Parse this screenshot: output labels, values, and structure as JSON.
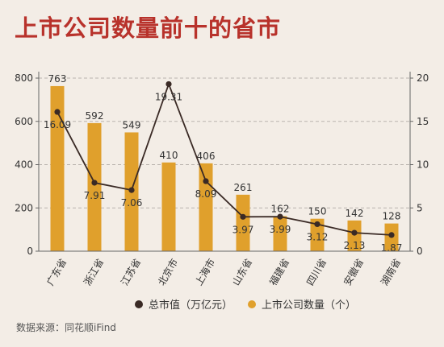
{
  "chart_data": {
    "type": "bar",
    "title": "上市公司数量前十的省市",
    "categories": [
      "广东省",
      "浙江省",
      "江苏省",
      "北京市",
      "上海市",
      "山东省",
      "福建省",
      "四川省",
      "安徽省",
      "湖南省"
    ],
    "series": [
      {
        "name": "上市公司数量（个）",
        "type": "bar",
        "axis": "left",
        "values": [
          763,
          592,
          549,
          410,
          406,
          261,
          162,
          150,
          142,
          128
        ],
        "labels": [
          "763",
          "592",
          "549",
          "410",
          "406",
          "261",
          "162",
          "150",
          "142",
          "128"
        ],
        "color": "#e0a02c"
      },
      {
        "name": "总市值（万亿元）",
        "type": "line",
        "axis": "right",
        "values": [
          16.09,
          7.91,
          7.06,
          19.31,
          8.09,
          3.97,
          3.99,
          3.12,
          2.13,
          1.87
        ],
        "labels": [
          "16.09",
          "7.91",
          "7.06",
          "19.31",
          "8.09",
          "3.97",
          "3.99",
          "3.12",
          "2.13",
          "1.87"
        ],
        "color": "#3a2a25"
      }
    ],
    "y_left": {
      "range": [
        0,
        800
      ],
      "ticks": [
        "0",
        "200",
        "400",
        "600",
        "800"
      ]
    },
    "y_right": {
      "range": [
        0,
        20
      ],
      "ticks": [
        "0",
        "5",
        "10",
        "15",
        "20"
      ]
    },
    "grid": "horizontal dashed",
    "legend_position": "bottom"
  },
  "legend": {
    "line_label": "总市值（万亿元）",
    "bar_label": "上市公司数量（个）"
  },
  "source": "数据来源：同花顺iFind",
  "colors": {
    "title": "#b8322b",
    "bar": "#e0a02c",
    "line": "#3a2a25",
    "background": "#f3ede6"
  }
}
